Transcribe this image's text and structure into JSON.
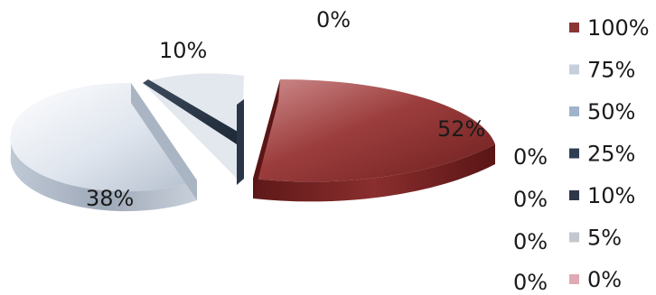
{
  "chart_data": {
    "type": "pie",
    "categories": [
      "100%",
      "75%",
      "50%",
      "25%",
      "10%",
      "5%",
      "0%"
    ],
    "values": [
      52,
      38,
      0,
      0,
      10,
      0,
      0
    ],
    "data_labels": [
      "52%",
      "38%",
      "0%",
      "0%",
      "10%",
      "0%",
      "0%"
    ],
    "legend": {
      "placement": "right",
      "entries": [
        "100%",
        "75%",
        "50%",
        "25%",
        "10%",
        "5%",
        "0%"
      ]
    },
    "colors": [
      "#8b3535",
      "#c6cfdc",
      "#9fb3cc",
      "#2f3f52",
      "#2e3848",
      "#c3c8cf",
      "#e0aab5"
    ],
    "exploded": true,
    "style": "3d"
  }
}
